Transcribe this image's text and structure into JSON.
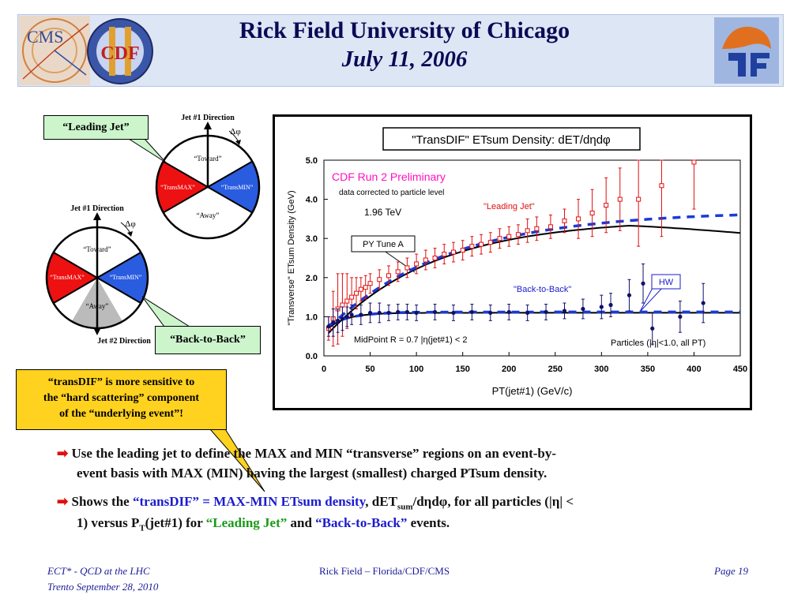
{
  "header": {
    "title": "Rick Field University of Chicago",
    "subtitle": "July 11, 2006",
    "logo_left_text": "CMS",
    "logo_middle_text": "CDF"
  },
  "diagram_top": {
    "jet_direction": "Jet #1 Direction",
    "dphi": "Δφ",
    "toward": "“Toward”",
    "transmax": "“TransMAX”",
    "transmin": "“TransMIN”",
    "away": "“Away”",
    "callout": "“Leading Jet”"
  },
  "diagram_bottom": {
    "jet1_direction": "Jet #1 Direction",
    "jet2_direction": "Jet #2 Direction",
    "dphi": "Δφ",
    "toward": "“Toward”",
    "transmax": "“TransMAX”",
    "transmin": "“TransMIN”",
    "away": "“Away”",
    "callout": "“Back-to-Back”"
  },
  "note": {
    "line1": "“transDIF” is more sensitive to",
    "line2": "the “hard scattering” component",
    "line3": "of the “underlying event”!"
  },
  "bullets": {
    "b1_line1": "Use the leading jet to define the MAX and MIN “transverse” regions on an event-by-",
    "b1_line2": "event basis with MAX (MIN) having the largest (smallest) charged PTsum density.",
    "b2_part1": "Shows the ",
    "b2_blue": "“transDIF” = MAX-MIN ETsum density",
    "b2_part2": ", dET",
    "b2_sub": "sum",
    "b2_part3": "/dηdφ, for all particles (|η| <",
    "b2_line2_part1": "1) versus P",
    "b2_line2_sub": "T",
    "b2_line2_part2": "(jet#1) for ",
    "b2_green": "“Leading Jet”",
    "b2_and": " and ",
    "b2_blue2": "“Back-to-Back”",
    "b2_end": " events."
  },
  "footer": {
    "left1": "ECT* - QCD at the LHC",
    "left2": "Trento  September 28, 2010",
    "center": "Rick Field – Florida/CDF/CMS",
    "right": "Page 19"
  },
  "chart_data": {
    "type": "scatter",
    "title": "\"TransDIF\" ETsum Density: dET/dηdφ",
    "xlabel": "PT(jet#1)  (GeV/c)",
    "ylabel": "\"Transverse\" ETsum Density (GeV)",
    "xlim": [
      0,
      450
    ],
    "ylim": [
      0,
      5
    ],
    "x_ticks": [
      "0",
      "50",
      "100",
      "150",
      "200",
      "250",
      "300",
      "350",
      "400",
      "450"
    ],
    "y_ticks": [
      "0.0",
      "1.0",
      "2.0",
      "3.0",
      "4.0",
      "5.0"
    ],
    "annotations": {
      "preliminary": "CDF Run 2 Preliminary",
      "corrected": "data corrected to particle level",
      "energy": "1.96 TeV",
      "leading_jet": "\"Leading Jet\"",
      "back_to_back": "\"Back-to-Back\"",
      "py_tune": "PY Tune A",
      "hw": "HW",
      "midpoint": "MidPoint R = 0.7 |η(jet#1) < 2",
      "particles": "Particles (|η|<1.0, all PT)"
    },
    "series": [
      {
        "name": "\"Leading Jet\"",
        "color": "#e01010",
        "marker": "open-square",
        "points": [
          [
            5,
            0.7,
            0.3
          ],
          [
            10,
            0.95,
            0.7
          ],
          [
            15,
            1.2,
            0.9
          ],
          [
            20,
            1.3,
            0.8
          ],
          [
            25,
            1.4,
            0.7
          ],
          [
            30,
            1.5,
            0.5
          ],
          [
            35,
            1.6,
            0.4
          ],
          [
            40,
            1.7,
            0.3
          ],
          [
            45,
            1.75,
            0.3
          ],
          [
            50,
            1.85,
            0.25
          ],
          [
            60,
            1.95,
            0.25
          ],
          [
            70,
            2.05,
            0.25
          ],
          [
            80,
            2.15,
            0.25
          ],
          [
            90,
            2.25,
            0.25
          ],
          [
            100,
            2.35,
            0.25
          ],
          [
            110,
            2.45,
            0.25
          ],
          [
            120,
            2.5,
            0.25
          ],
          [
            130,
            2.6,
            0.25
          ],
          [
            140,
            2.65,
            0.25
          ],
          [
            150,
            2.7,
            0.25
          ],
          [
            160,
            2.8,
            0.25
          ],
          [
            170,
            2.85,
            0.25
          ],
          [
            180,
            2.9,
            0.25
          ],
          [
            190,
            3.0,
            0.25
          ],
          [
            200,
            3.05,
            0.25
          ],
          [
            210,
            3.1,
            0.25
          ],
          [
            220,
            3.2,
            0.3
          ],
          [
            230,
            3.25,
            0.3
          ],
          [
            245,
            3.3,
            0.3
          ],
          [
            260,
            3.45,
            0.3
          ],
          [
            275,
            3.5,
            0.5
          ],
          [
            290,
            3.65,
            0.6
          ],
          [
            305,
            3.85,
            0.7
          ],
          [
            320,
            4.0,
            0.8
          ],
          [
            340,
            4.0,
            1.2
          ],
          [
            365,
            4.35,
            1.3
          ],
          [
            400,
            4.95,
            1.2
          ]
        ]
      },
      {
        "name": "\"Back-to-Back\"",
        "color": "#10106a",
        "marker": "filled-circle",
        "points": [
          [
            5,
            0.75,
            0.25
          ],
          [
            10,
            0.85,
            0.35
          ],
          [
            15,
            0.9,
            0.3
          ],
          [
            20,
            0.95,
            0.3
          ],
          [
            25,
            1.0,
            0.25
          ],
          [
            30,
            1.05,
            0.25
          ],
          [
            40,
            1.05,
            0.25
          ],
          [
            50,
            1.1,
            0.25
          ],
          [
            60,
            1.1,
            0.25
          ],
          [
            70,
            1.1,
            0.2
          ],
          [
            80,
            1.12,
            0.2
          ],
          [
            90,
            1.12,
            0.2
          ],
          [
            100,
            1.1,
            0.2
          ],
          [
            120,
            1.12,
            0.2
          ],
          [
            140,
            1.1,
            0.2
          ],
          [
            160,
            1.12,
            0.2
          ],
          [
            180,
            1.1,
            0.2
          ],
          [
            200,
            1.12,
            0.2
          ],
          [
            220,
            1.1,
            0.2
          ],
          [
            240,
            1.12,
            0.2
          ],
          [
            260,
            1.15,
            0.2
          ],
          [
            280,
            1.2,
            0.25
          ],
          [
            300,
            1.25,
            0.3
          ],
          [
            310,
            1.3,
            0.3
          ],
          [
            330,
            1.55,
            0.4
          ],
          [
            345,
            1.85,
            0.5
          ],
          [
            355,
            0.7,
            0.4
          ],
          [
            385,
            1.0,
            0.4
          ],
          [
            410,
            1.35,
            0.5
          ]
        ]
      }
    ]
  }
}
